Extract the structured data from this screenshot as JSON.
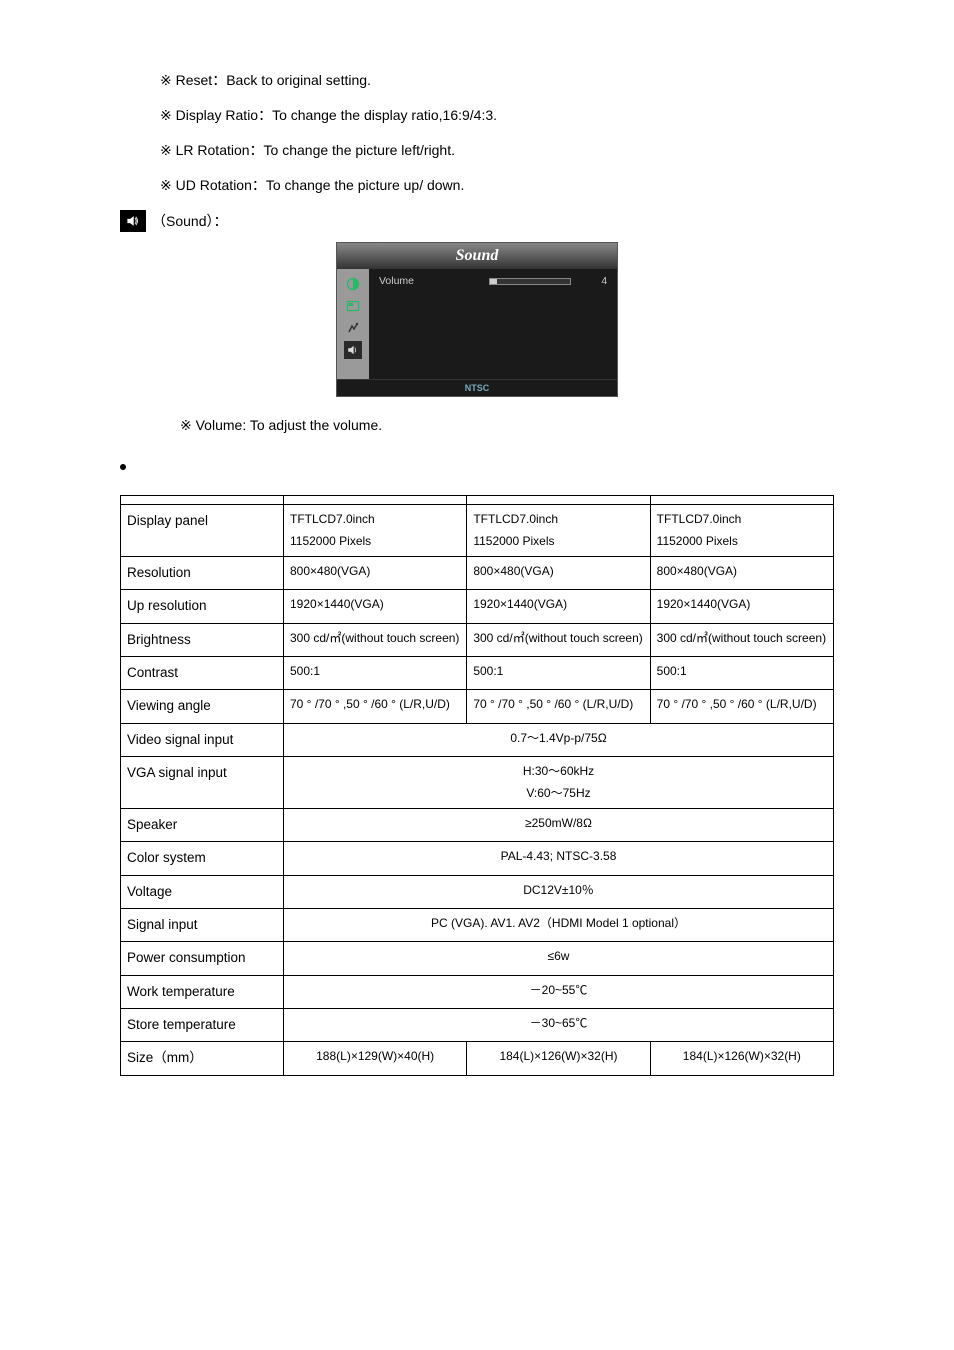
{
  "bullets": {
    "reset": "※ Reset：Back to original setting.",
    "display_ratio": "※ Display Ratio：To change the display ratio,16:9/4:3.",
    "lr_rotation": "※ LR Rotation：To change the picture left/right.",
    "ud_rotation": "※ UD Rotation：To change the picture up/ down."
  },
  "sound_section_label": "（Sound）：",
  "osd": {
    "title": "Sound",
    "row_label": "Volume",
    "row_value": "4",
    "footer": "NTSC"
  },
  "volume_line": "※ Volume: To adjust the volume.",
  "spec_table": {
    "rows": [
      {
        "label": "",
        "c1": "",
        "c2": "",
        "c3": ""
      },
      {
        "label": "Display panel",
        "c1": "TFTLCD7.0inch\n1152000 Pixels",
        "c2": "TFTLCD7.0inch\n1152000 Pixels",
        "c3": "TFTLCD7.0inch\n1152000 Pixels"
      },
      {
        "label": "Resolution",
        "c1": "800×480(VGA)",
        "c2": "800×480(VGA)",
        "c3": "800×480(VGA)"
      },
      {
        "label": "Up resolution",
        "c1": "1920×1440(VGA)",
        "c2": "1920×1440(VGA)",
        "c3": "1920×1440(VGA)"
      },
      {
        "label": "Brightness",
        "c1": "300 cd/㎡(without touch screen)",
        "c2": "300 cd/㎡(without touch screen)",
        "c3": "300 cd/㎡(without touch screen)"
      },
      {
        "label": "Contrast",
        "c1": "500:1",
        "c2": "500:1",
        "c3": "500:1"
      },
      {
        "label": "Viewing angle",
        "c1": "70 °  /70 °  ,50 °  /60 ° (L/R,U/D)",
        "c2": "70 °  /70 °  ,50 °  /60 ° (L/R,U/D)",
        "c3": "70 °  /70 °  ,50 °  /60 ° (L/R,U/D)"
      },
      {
        "label": "Video signal input",
        "merged": "0.7～1.4Vp-p/75Ω"
      },
      {
        "label": "VGA signal input",
        "merged": "H:30～60kHz\nV:60～75Hz"
      },
      {
        "label": "Speaker",
        "merged": "≥250mW/8Ω"
      },
      {
        "label": "Color system",
        "merged": "PAL-4.43; NTSC-3.58"
      },
      {
        "label": "Voltage",
        "merged": "DC12V±10％"
      },
      {
        "label": "Signal input",
        "merged": "PC (VGA). AV1. AV2（HDMI Model 1 optional）"
      },
      {
        "label": "Power consumption",
        "merged": "≤6w"
      },
      {
        "label": "Work temperature",
        "merged": "－20~55℃"
      },
      {
        "label": "Store temperature",
        "merged": "－30~65℃"
      },
      {
        "label": "Size（mm）",
        "c1": "188(L)×129(W)×40(H)",
        "c2": "184(L)×126(W)×32(H)",
        "c3": "184(L)×126(W)×32(H)"
      }
    ]
  }
}
